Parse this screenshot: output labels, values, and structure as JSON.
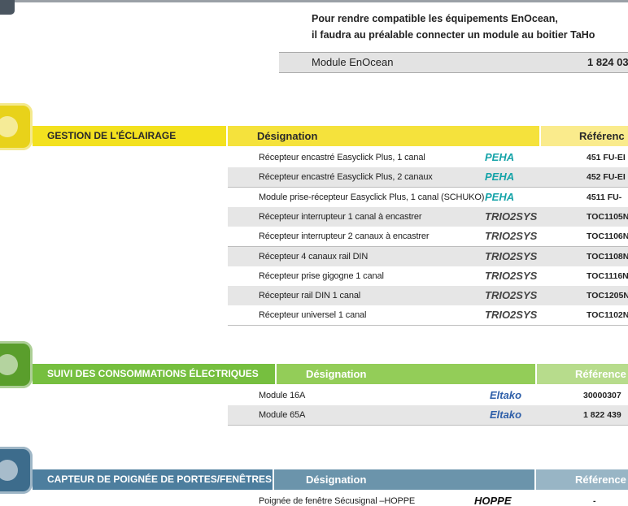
{
  "intro": {
    "lines": [
      "Pour rendre compatible les équipements EnOcean,",
      "il faudra au préalable connecter un module au boitier TaHo"
    ],
    "module": {
      "designation": "Module EnOcean",
      "reference": "1 824 03"
    }
  },
  "sections": [
    {
      "title": "GESTION DE L'ÉCLAIRAGE",
      "designation_header": "Désignation",
      "reference_header": "Référenc",
      "title_color": "#f3e11f",
      "header_color": "#f5e23c",
      "ref_header_color": "#faeb8c",
      "header_text_color": "#2a2a2a",
      "icon_color": "#e8d21a",
      "rows": [
        {
          "designation": "Récepteur encastré Easyclick Plus, 1 canal",
          "brand": "PEHA",
          "brand_color": "#15a3a8",
          "reference": "451 FU-EI"
        },
        {
          "designation": "Récepteur encastré Easyclick Plus, 2 canaux",
          "brand": "PEHA",
          "brand_color": "#15a3a8",
          "reference": "452 FU-EI"
        },
        {
          "designation": "Module prise-récepteur Easyclick Plus, 1 canal (SCHUKO)",
          "brand": "PEHA",
          "brand_color": "#15a3a8",
          "reference": "4511 FU-"
        },
        {
          "designation": "Récepteur interrupteur 1 canal à encastrer",
          "brand": "TRIO2SYS",
          "brand_color": "#444444",
          "reference": "TOC1105N"
        },
        {
          "designation": "Récepteur interrupteur 2 canaux à encastrer",
          "brand": "TRIO2SYS",
          "brand_color": "#444444",
          "reference": "TOC1106N"
        },
        {
          "designation": "Récepteur 4 canaux rail DIN",
          "brand": "TRIO2SYS",
          "brand_color": "#444444",
          "reference": "TOC1108N"
        },
        {
          "designation": "Récepteur prise gigogne 1 canal",
          "brand": "TRIO2SYS",
          "brand_color": "#444444",
          "reference": "TOC1116N"
        },
        {
          "designation": "Récepteur rail DIN 1 canal",
          "brand": "TRIO2SYS",
          "brand_color": "#444444",
          "reference": "TOC1205N"
        },
        {
          "designation": "Récepteur universel 1 canal",
          "brand": "TRIO2SYS",
          "brand_color": "#444444",
          "reference": "TOC1102N"
        }
      ]
    },
    {
      "title": "SUIVI DES CONSOMMATIONS ÉLECTRIQUES",
      "designation_header": "Désignation",
      "reference_header": "Référence",
      "title_color": "#76bf3f",
      "header_color": "#93cd58",
      "ref_header_color": "#b7dc8c",
      "header_text_color": "#ffffff",
      "icon_color": "#5a9e2c",
      "rows": [
        {
          "designation": "Module 16A",
          "brand": "Eltako",
          "brand_color": "#2d5ea8",
          "reference": "30000307"
        },
        {
          "designation": "Module 65A",
          "brand": "Eltako",
          "brand_color": "#2d5ea8",
          "reference": "1 822 439"
        }
      ]
    },
    {
      "title": "CAPTEUR DE POIGNÉE DE PORTES/FENÊTRES",
      "designation_header": "Désignation",
      "reference_header": "Référence",
      "title_color": "#4d7e9e",
      "header_color": "#6b94ab",
      "ref_header_color": "#98b5c5",
      "header_text_color": "#ffffff",
      "icon_color": "#3d6c8c",
      "rows": [
        {
          "designation": "Poignée de fenêtre Sécusignal –HOPPE",
          "brand": "HOPPE",
          "brand_color": "#111111",
          "reference": "-"
        }
      ]
    }
  ]
}
